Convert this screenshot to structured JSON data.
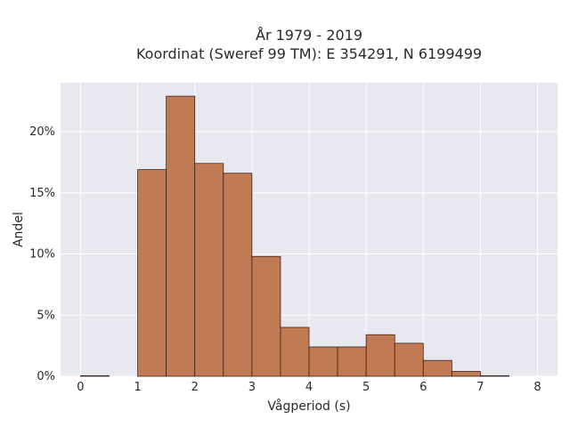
{
  "chart_data": {
    "type": "bar",
    "title": [
      "År 1979 - 2019",
      "Koordinat (Sweref 99 TM): E 354291, N 6199499"
    ],
    "xlabel": "Vågperiod (s)",
    "ylabel": "Andel",
    "xlim": [
      -0.35,
      8.35
    ],
    "ylim": [
      0,
      24.0
    ],
    "xticks": [
      0,
      1,
      2,
      3,
      4,
      5,
      6,
      7,
      8
    ],
    "xtick_labels": [
      "0",
      "1",
      "2",
      "3",
      "4",
      "5",
      "6",
      "7",
      "8"
    ],
    "yticks": [
      0,
      5,
      10,
      15,
      20
    ],
    "ytick_labels": [
      "0%",
      "5%",
      "10%",
      "15%",
      "20%"
    ],
    "grid": true,
    "bin_width": 0.5,
    "bins": [
      {
        "x0": 0.0,
        "value": 0.05
      },
      {
        "x0": 0.5,
        "value": 0.0
      },
      {
        "x0": 1.0,
        "value": 16.9
      },
      {
        "x0": 1.5,
        "value": 22.9
      },
      {
        "x0": 2.0,
        "value": 17.4
      },
      {
        "x0": 2.5,
        "value": 16.6
      },
      {
        "x0": 3.0,
        "value": 9.8
      },
      {
        "x0": 3.5,
        "value": 4.0
      },
      {
        "x0": 4.0,
        "value": 2.4
      },
      {
        "x0": 4.5,
        "value": 2.4
      },
      {
        "x0": 5.0,
        "value": 3.4
      },
      {
        "x0": 5.5,
        "value": 2.7
      },
      {
        "x0": 6.0,
        "value": 1.3
      },
      {
        "x0": 6.5,
        "value": 0.4
      },
      {
        "x0": 7.0,
        "value": 0.05
      },
      {
        "x0": 7.5,
        "value": 0.0
      }
    ],
    "colors": {
      "bar": "#c07b54",
      "bar_edge": "#3b2418",
      "plot_bg": "#e8e8f0",
      "grid": "#ffffff"
    }
  }
}
